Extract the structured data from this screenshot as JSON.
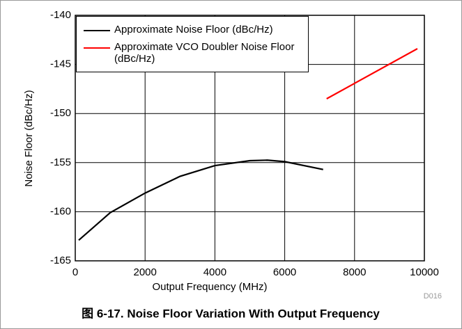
{
  "chart_data": {
    "type": "line",
    "caption": "图 6-17. Noise Floor Variation With Output Frequency",
    "code": "D016",
    "xlabel": "Output Frequency (MHz)",
    "ylabel": "Noise Floor (dBc/Hz)",
    "xlim": [
      0,
      10000
    ],
    "xticks": [
      0,
      2000,
      4000,
      6000,
      8000,
      10000
    ],
    "ylim": [
      -165,
      -140
    ],
    "yticks": [
      -165,
      -160,
      -155,
      -150,
      -145,
      -140
    ],
    "grid": true,
    "legend": "upper left",
    "series": [
      {
        "name": "Approximate Noise Floor (dBc/Hz)",
        "color": "#000000",
        "x": [
          100,
          1000,
          2000,
          3000,
          4000,
          5000,
          5500,
          6000,
          7100
        ],
        "values": [
          -162.9,
          -160.1,
          -158.1,
          -156.4,
          -155.3,
          -154.8,
          -154.75,
          -154.9,
          -155.7
        ]
      },
      {
        "name": "Approximate VCO Doubler Noise Floor (dBc/Hz)",
        "color": "#ff0000",
        "x": [
          7200,
          9800
        ],
        "values": [
          -148.5,
          -143.4
        ]
      }
    ]
  }
}
